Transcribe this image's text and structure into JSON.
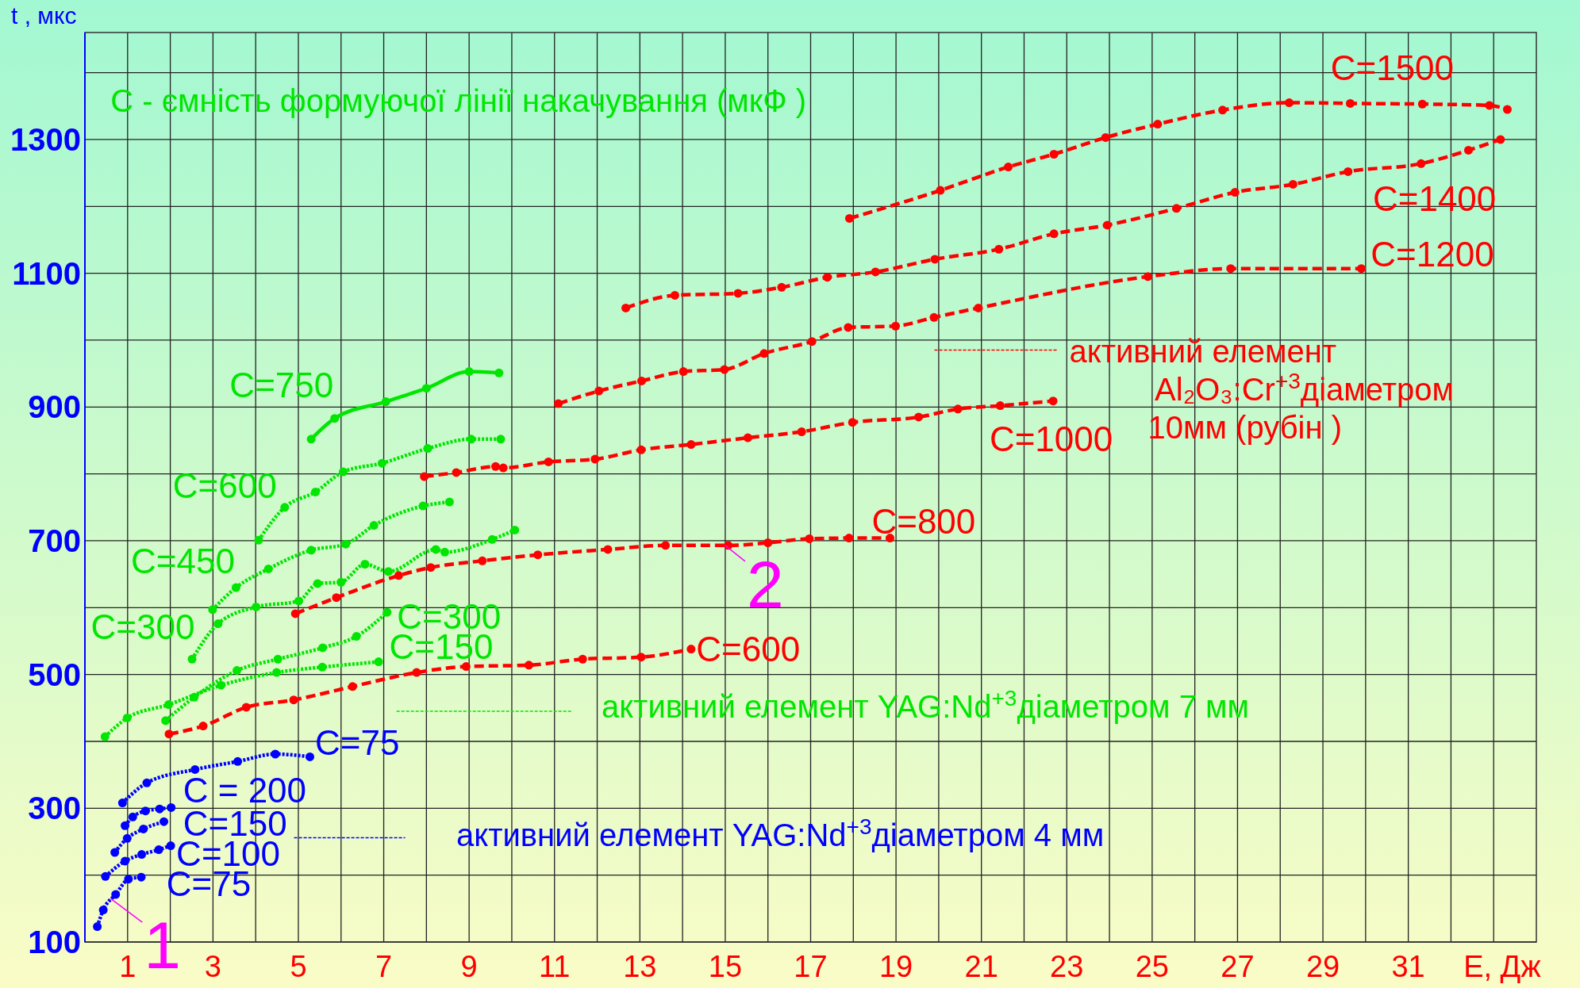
{
  "chart_data": {
    "type": "line",
    "title": "C - ємність формуючої лінії накачування    (мкФ )",
    "xlabel": "E, Дж",
    "ylabel": "t , мкс",
    "xlim": [
      0,
      34
    ],
    "ylim": [
      100,
      1460
    ],
    "xticks": [
      {
        "value": 0,
        "label": null
      },
      1,
      {
        "value": 2,
        "label": null
      },
      3,
      {
        "value": 4,
        "label": null
      },
      5,
      {
        "value": 6,
        "label": null
      },
      7,
      {
        "value": 8,
        "label": null
      },
      9,
      {
        "value": 10,
        "label": null
      },
      11,
      {
        "value": 12,
        "label": null
      },
      13,
      {
        "value": 14,
        "label": null
      },
      15,
      {
        "value": 16,
        "label": null
      },
      17,
      {
        "value": 18,
        "label": null
      },
      19,
      {
        "value": 20,
        "label": null
      },
      21,
      {
        "value": 22,
        "label": null
      },
      23,
      {
        "value": 24,
        "label": null
      },
      25,
      {
        "value": 26,
        "label": null
      },
      27,
      {
        "value": 28,
        "label": null
      },
      29,
      {
        "value": 30,
        "label": null
      },
      31,
      {
        "value": 32,
        "label": null
      },
      {
        "value": 33,
        "label": null
      }
    ],
    "yticks": [
      100,
      {
        "value": 200,
        "label": null
      },
      300,
      {
        "value": 400,
        "label": null
      },
      500,
      {
        "value": 600,
        "label": null
      },
      700,
      {
        "value": 800,
        "label": null
      },
      900,
      {
        "value": 1000,
        "label": null
      },
      1100,
      {
        "value": 1200,
        "label": null
      },
      1300,
      {
        "value": 1400,
        "label": null
      }
    ],
    "grid": true,
    "marker": "circle",
    "series": [
      {
        "name": "C=75",
        "color": "#0000ff",
        "line_style": "dotted",
        "x": [
          0.88,
          1.45,
          2.58,
          3.58,
          4.46,
          5.27
        ],
        "values": [
          308,
          338,
          358,
          370,
          381,
          377
        ]
      },
      {
        "name": "C = 200",
        "color": "#0000ff",
        "line_style": "dotted",
        "x": [
          0.94,
          1.12,
          1.42,
          1.75,
          2.02
        ],
        "values": [
          274,
          287,
          296,
          299,
          301
        ]
      },
      {
        "name": "C=150",
        "color": "#0000ff",
        "line_style": "dotted",
        "x": [
          0.7,
          0.99,
          1.37,
          1.85
        ],
        "values": [
          234,
          255,
          269,
          280
        ]
      },
      {
        "name": "C=100",
        "color": "#0000ff",
        "line_style": "dotted",
        "x": [
          0.48,
          0.94,
          1.33,
          1.73,
          2.01
        ],
        "values": [
          198,
          221,
          231,
          238,
          244
        ]
      },
      {
        "name": "C=75",
        "color": "#0000ff",
        "line_style": "dotted",
        "x": [
          0.29,
          0.43,
          0.72,
          1.02,
          1.32
        ],
        "values": [
          123,
          148,
          171,
          194,
          197
        ]
      },
      {
        "name": "C=750",
        "color": "#00e600",
        "line_style": "solid",
        "x": [
          5.3,
          5.85,
          7.05,
          8.0,
          9.0,
          9.7
        ],
        "values": [
          852,
          883,
          908,
          928,
          953,
          951
        ]
      },
      {
        "name": "C=600",
        "color": "#00e600",
        "line_style": "dotted",
        "x": [
          4.07,
          4.68,
          5.4,
          6.05,
          6.96,
          8.03,
          9.05,
          9.74
        ],
        "values": [
          701,
          750,
          773,
          803,
          816,
          838,
          852,
          852
        ]
      },
      {
        "name": "C=450",
        "color": "#00e600",
        "line_style": "dotted",
        "x": [
          2.99,
          3.54,
          4.3,
          5.3,
          6.11,
          6.77,
          7.92,
          8.54
        ],
        "values": [
          597,
          630,
          658,
          686,
          695,
          723,
          752,
          758
        ]
      },
      {
        "name": "C=300",
        "color": "#00e600",
        "line_style": "dotted",
        "x": [
          2.51,
          3.12,
          4.01,
          5.01,
          5.45,
          6.0,
          6.56,
          7.11,
          8.22,
          8.43,
          9.54,
          10.07
        ],
        "values": [
          523,
          576,
          601,
          610,
          636,
          638,
          665,
          654,
          687,
          683,
          702,
          716
        ]
      },
      {
        "name": "C=300",
        "color": "#00e600",
        "line_style": "dotted",
        "x": [
          1.89,
          2.56,
          3.56,
          4.52,
          5.57,
          6.36,
          7.08
        ],
        "values": [
          431,
          466,
          506,
          523,
          540,
          557,
          593
        ]
      },
      {
        "name": "C=150",
        "color": "#00e600",
        "line_style": "dotted",
        "x": [
          0.47,
          0.99,
          1.96,
          3.19,
          4.49,
          5.56,
          6.88
        ],
        "values": [
          407,
          435,
          455,
          484,
          503,
          511,
          519
        ]
      },
      {
        "name": "C=600",
        "color": "#ff0000",
        "line_style": "dashed",
        "x": [
          1.97,
          2.77,
          3.78,
          4.89,
          6.27,
          7.77,
          8.93,
          10.4,
          11.66,
          13.03,
          14.2
        ],
        "values": [
          411,
          423,
          451,
          462,
          482,
          503,
          512,
          514,
          523,
          526,
          538
        ]
      },
      {
        "name": "C=800",
        "color": "#ff0000",
        "line_style": "dashed",
        "x": [
          4.93,
          5.89,
          7.35,
          8.1,
          9.31,
          10.61,
          12.25,
          13.6,
          15.07,
          16.0,
          16.97,
          17.9,
          18.86
        ],
        "values": [
          591,
          615,
          648,
          660,
          670,
          679,
          687,
          693,
          693,
          697,
          703,
          704,
          704
        ]
      },
      {
        "name": "C=1000",
        "color": "#ff0000",
        "line_style": "dashed",
        "x": [
          7.95,
          8.7,
          9.62,
          9.8,
          10.86,
          11.95,
          13.03,
          14.2,
          15.53,
          16.79,
          17.98,
          19.53,
          20.45,
          21.44,
          22.68
        ],
        "values": [
          796,
          802,
          811,
          809,
          818,
          822,
          836,
          844,
          854,
          863,
          877,
          885,
          897,
          902,
          909
        ]
      },
      {
        "name": "C=1200",
        "color": "#ff0000",
        "line_style": "dashed",
        "x": [
          11.09,
          12.04,
          13.04,
          14.02,
          14.98,
          15.91,
          17.03,
          17.88,
          18.99,
          19.89,
          20.93,
          24.9,
          26.84,
          29.9
        ],
        "values": [
          905,
          924,
          939,
          953,
          956,
          980,
          998,
          1019,
          1021,
          1034,
          1048,
          1095,
          1107,
          1107
        ]
      },
      {
        "name": "C=1400",
        "color": "#ff0000",
        "line_style": "dashed",
        "x": [
          12.67,
          13.82,
          15.3,
          16.32,
          17.39,
          18.52,
          19.91,
          21.41,
          22.7,
          23.95,
          25.57,
          26.94,
          28.3,
          29.59,
          31.3,
          32.41,
          33.16
        ],
        "values": [
          1048,
          1067,
          1070,
          1079,
          1094,
          1102,
          1121,
          1136,
          1159,
          1172,
          1197,
          1221,
          1233,
          1252,
          1264,
          1284,
          1300
        ]
      },
      {
        "name": "C=1500",
        "color": "#ff0000",
        "line_style": "dashed",
        "x": [
          17.91,
          20.04,
          21.63,
          22.7,
          23.91,
          25.13,
          26.65,
          28.21,
          29.64,
          31.33,
          32.9,
          33.32
        ],
        "values": [
          1182,
          1224,
          1259,
          1278,
          1303,
          1323,
          1344,
          1355,
          1354,
          1353,
          1351,
          1345
        ]
      }
    ],
    "annotations": [
      "активний елемент YAG:Nd$^{+3}$діаметром 7 мм",
      "активний елемент YAG:Nd$^{+3}$діаметром 4 мм",
      "активний елемент\nAl₂O₃:Cr$^{+3}$діаметром\n10мм    (рубін )",
      {
        "text": "1",
        "x": 0.6,
        "y": 165
      },
      {
        "text": "2",
        "x": 15.0,
        "y": 693
      }
    ]
  }
}
